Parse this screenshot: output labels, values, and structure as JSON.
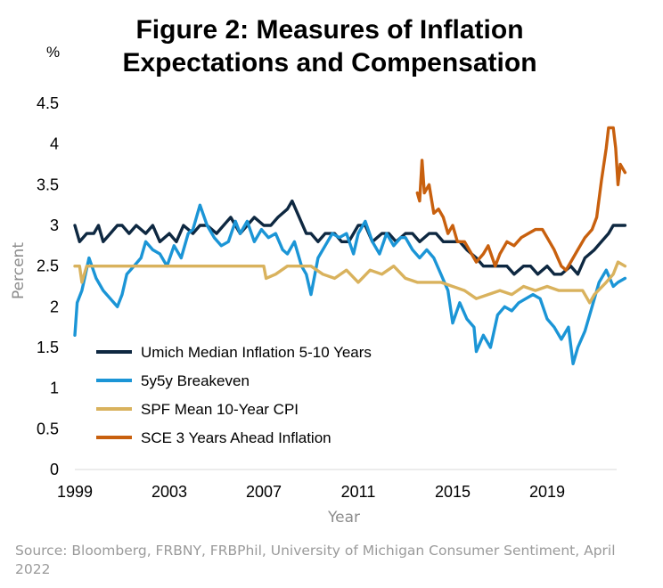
{
  "figure": {
    "title_line1": "Figure 2: Measures of Inflation",
    "title_line2": "Expectations and Compensation",
    "unit_label": "%",
    "source": "Source: Bloomberg, FRBNY, FRBPhil, University of Michigan Consumer Sentiment, April 2022"
  },
  "chart_data": {
    "type": "line",
    "title": "Figure 2: Measures of Inflation Expectations and Compensation",
    "xlabel": "Year",
    "ylabel": "Percent",
    "xlim": [
      1999.0,
      2022.3
    ],
    "ylim": [
      0,
      4.5
    ],
    "y_ticks": [
      "0",
      "0.5",
      "1",
      "1.5",
      "2",
      "2.5",
      "3",
      "3.5",
      "4",
      "4.5"
    ],
    "y_tick_values": [
      0,
      0.5,
      1,
      1.5,
      2,
      2.5,
      3,
      3.5,
      4,
      4.5
    ],
    "x_ticks": [
      "1999",
      "2003",
      "2007",
      "2011",
      "2015",
      "2019"
    ],
    "x_tick_values": [
      1999,
      2003,
      2007,
      2011,
      2015,
      2019
    ],
    "grid": false,
    "legend_position": "lower-left",
    "series": [
      {
        "name": "Umich Median Inflation 5-10 Years",
        "color": "#0e2841",
        "x": [
          1999.0,
          1999.2,
          1999.5,
          1999.8,
          2000.0,
          2000.2,
          2000.5,
          2000.8,
          2001.0,
          2001.3,
          2001.6,
          2002.0,
          2002.3,
          2002.6,
          2003.0,
          2003.3,
          2003.6,
          2004.0,
          2004.3,
          2004.6,
          2005.0,
          2005.3,
          2005.6,
          2006.0,
          2006.3,
          2006.6,
          2007.0,
          2007.3,
          2007.6,
          2008.0,
          2008.2,
          2008.5,
          2008.8,
          2009.0,
          2009.3,
          2009.6,
          2010.0,
          2010.3,
          2010.6,
          2011.0,
          2011.3,
          2011.6,
          2012.0,
          2012.3,
          2012.6,
          2013.0,
          2013.3,
          2013.6,
          2014.0,
          2014.3,
          2014.6,
          2015.0,
          2015.3,
          2015.6,
          2016.0,
          2016.3,
          2016.6,
          2017.0,
          2017.3,
          2017.6,
          2018.0,
          2018.3,
          2018.6,
          2019.0,
          2019.3,
          2019.6,
          2020.0,
          2020.3,
          2020.6,
          2021.0,
          2021.3,
          2021.6,
          2021.8,
          2022.0,
          2022.3
        ],
        "values": [
          3.0,
          2.8,
          2.9,
          2.9,
          3.0,
          2.8,
          2.9,
          3.0,
          3.0,
          2.9,
          3.0,
          2.9,
          3.0,
          2.8,
          2.9,
          2.8,
          3.0,
          2.9,
          3.0,
          3.0,
          2.9,
          3.0,
          3.1,
          2.9,
          3.0,
          3.1,
          3.0,
          3.0,
          3.1,
          3.2,
          3.3,
          3.1,
          2.9,
          2.9,
          2.8,
          2.9,
          2.9,
          2.8,
          2.8,
          3.0,
          3.0,
          2.8,
          2.9,
          2.9,
          2.8,
          2.9,
          2.9,
          2.8,
          2.9,
          2.9,
          2.8,
          2.8,
          2.8,
          2.7,
          2.6,
          2.5,
          2.5,
          2.5,
          2.5,
          2.4,
          2.5,
          2.5,
          2.4,
          2.5,
          2.4,
          2.4,
          2.5,
          2.4,
          2.6,
          2.7,
          2.8,
          2.9,
          3.0,
          3.0,
          3.0
        ]
      },
      {
        "name": "5y5y Breakeven",
        "color": "#1b95d6",
        "x": [
          1999.0,
          1999.1,
          1999.3,
          1999.6,
          1999.9,
          2000.2,
          2000.5,
          2000.8,
          2001.0,
          2001.2,
          2001.5,
          2001.8,
          2002.0,
          2002.3,
          2002.6,
          2002.9,
          2003.2,
          2003.5,
          2003.8,
          2004.0,
          2004.3,
          2004.6,
          2004.9,
          2005.2,
          2005.5,
          2005.8,
          2006.0,
          2006.3,
          2006.6,
          2006.9,
          2007.2,
          2007.5,
          2007.8,
          2008.0,
          2008.3,
          2008.6,
          2008.8,
          2009.0,
          2009.3,
          2009.6,
          2009.9,
          2010.2,
          2010.5,
          2010.8,
          2011.0,
          2011.3,
          2011.6,
          2011.9,
          2012.2,
          2012.5,
          2012.8,
          2013.0,
          2013.3,
          2013.6,
          2013.9,
          2014.2,
          2014.5,
          2014.8,
          2015.0,
          2015.3,
          2015.6,
          2015.9,
          2016.0,
          2016.3,
          2016.6,
          2016.9,
          2017.2,
          2017.5,
          2017.8,
          2018.1,
          2018.4,
          2018.7,
          2019.0,
          2019.3,
          2019.6,
          2019.9,
          2020.1,
          2020.3,
          2020.6,
          2020.9,
          2021.2,
          2021.5,
          2021.8,
          2022.0,
          2022.3
        ],
        "values": [
          1.65,
          2.05,
          2.2,
          2.6,
          2.35,
          2.2,
          2.1,
          2.0,
          2.15,
          2.4,
          2.5,
          2.6,
          2.8,
          2.7,
          2.65,
          2.5,
          2.75,
          2.6,
          2.9,
          2.95,
          3.25,
          3.0,
          2.85,
          2.75,
          2.8,
          3.05,
          2.9,
          3.05,
          2.8,
          2.95,
          2.85,
          2.9,
          2.7,
          2.65,
          2.8,
          2.5,
          2.4,
          2.15,
          2.6,
          2.75,
          2.9,
          2.85,
          2.9,
          2.65,
          2.9,
          3.05,
          2.8,
          2.65,
          2.9,
          2.75,
          2.85,
          2.85,
          2.7,
          2.6,
          2.7,
          2.6,
          2.4,
          2.2,
          1.8,
          2.05,
          1.85,
          1.75,
          1.45,
          1.65,
          1.5,
          1.9,
          2.0,
          1.95,
          2.05,
          2.1,
          2.15,
          2.1,
          1.85,
          1.75,
          1.6,
          1.75,
          1.3,
          1.5,
          1.7,
          2.0,
          2.3,
          2.45,
          2.25,
          2.3,
          2.35
        ]
      },
      {
        "name": "SPF Mean 10-Year CPI",
        "color": "#d9b25d",
        "x": [
          1999.0,
          1999.2,
          1999.3,
          1999.5,
          2000.0,
          2001.0,
          2002.0,
          2003.0,
          2004.0,
          2005.0,
          2006.0,
          2007.0,
          2007.1,
          2007.5,
          2008.0,
          2009.0,
          2009.5,
          2010.0,
          2010.5,
          2011.0,
          2011.5,
          2012.0,
          2012.5,
          2013.0,
          2013.5,
          2014.0,
          2014.5,
          2015.0,
          2015.5,
          2016.0,
          2016.5,
          2017.0,
          2017.5,
          2018.0,
          2018.5,
          2019.0,
          2019.5,
          2020.0,
          2020.5,
          2020.8,
          2021.0,
          2021.5,
          2021.8,
          2022.0,
          2022.3
        ],
        "values": [
          2.5,
          2.5,
          2.3,
          2.5,
          2.5,
          2.5,
          2.5,
          2.5,
          2.5,
          2.5,
          2.5,
          2.5,
          2.35,
          2.4,
          2.5,
          2.5,
          2.4,
          2.35,
          2.45,
          2.3,
          2.45,
          2.4,
          2.5,
          2.35,
          2.3,
          2.3,
          2.3,
          2.25,
          2.2,
          2.1,
          2.15,
          2.2,
          2.15,
          2.25,
          2.2,
          2.25,
          2.2,
          2.2,
          2.2,
          2.05,
          2.15,
          2.3,
          2.4,
          2.55,
          2.5
        ]
      },
      {
        "name": "SCE 3 Years Ahead Inflation",
        "color": "#c8600e",
        "x": [
          2013.5,
          2013.6,
          2013.7,
          2013.8,
          2014.0,
          2014.2,
          2014.4,
          2014.6,
          2014.8,
          2015.0,
          2015.2,
          2015.5,
          2015.8,
          2016.0,
          2016.3,
          2016.5,
          2016.8,
          2017.0,
          2017.3,
          2017.6,
          2017.9,
          2018.2,
          2018.5,
          2018.8,
          2019.0,
          2019.3,
          2019.6,
          2019.8,
          2020.0,
          2020.3,
          2020.6,
          2020.9,
          2021.1,
          2021.3,
          2021.5,
          2021.6,
          2021.8,
          2021.9,
          2022.0,
          2022.1,
          2022.3
        ],
        "values": [
          3.4,
          3.3,
          3.8,
          3.4,
          3.5,
          3.15,
          3.2,
          3.1,
          2.9,
          3.0,
          2.8,
          2.8,
          2.65,
          2.55,
          2.65,
          2.75,
          2.5,
          2.65,
          2.8,
          2.75,
          2.85,
          2.9,
          2.95,
          2.95,
          2.85,
          2.7,
          2.5,
          2.45,
          2.55,
          2.7,
          2.85,
          2.95,
          3.1,
          3.55,
          3.95,
          4.2,
          4.2,
          3.95,
          3.5,
          3.75,
          3.65
        ]
      }
    ]
  }
}
